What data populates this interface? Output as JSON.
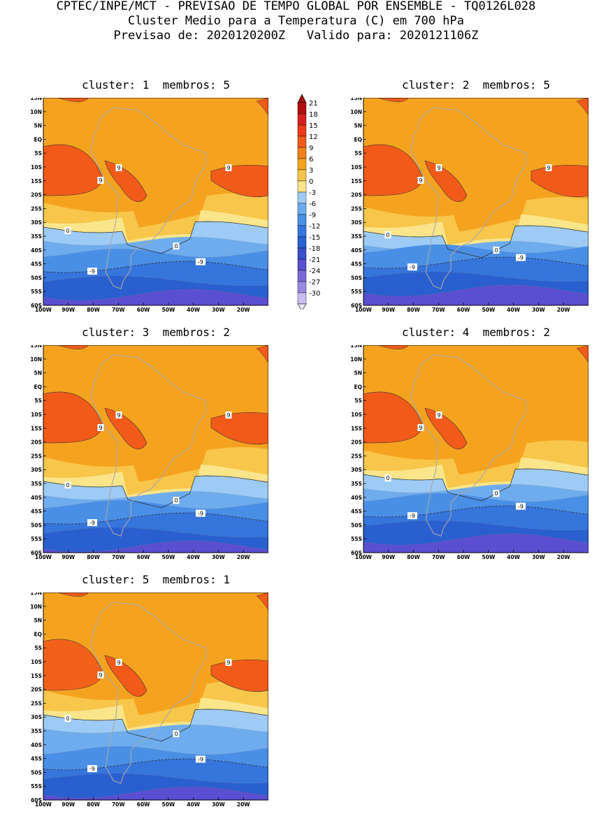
{
  "header": {
    "line1": "CPTEC/INPE/MCT - PREVISAO DE TEMPO GLOBAL POR ENSEMBLE - TQ0126L028",
    "line2": "Cluster Medio para a Temperatura (C) em 700 hPa",
    "line3": "Previsao de: 2020120200Z   Valido para: 2020121106Z"
  },
  "panels": [
    {
      "title": "cluster: 1  membros: 5"
    },
    {
      "title": "cluster: 2  membros: 5"
    },
    {
      "title": "cluster: 3  membros: 2"
    },
    {
      "title": "cluster: 4  membros: 2"
    },
    {
      "title": "cluster: 5  membros: 1"
    }
  ],
  "axes": {
    "lat_labels": [
      "15N",
      "10N",
      "5N",
      "EQ",
      "5S",
      "10S",
      "15S",
      "20S",
      "25S",
      "30S",
      "35S",
      "40S",
      "45S",
      "50S",
      "55S",
      "60S"
    ],
    "lon_labels": [
      "100W",
      "90W",
      "80W",
      "70W",
      "60W",
      "50W",
      "40W",
      "30W",
      "20W"
    ]
  },
  "colorbar": {
    "levels": [
      "21",
      "18",
      "15",
      "12",
      "9",
      "6",
      "3",
      "0",
      "-3",
      "-6",
      "-9",
      "-12",
      "-15",
      "-18",
      "-21",
      "-24",
      "-27",
      "-30"
    ],
    "colors": [
      "#b40e0e",
      "#d62020",
      "#ee3a1a",
      "#f25a1a",
      "#f57f1a",
      "#f5a31f",
      "#f8c64a",
      "#fbe58a",
      "#9ecbf5",
      "#6eacee",
      "#4a8fe6",
      "#3575dc",
      "#2a5fcf",
      "#3a4fc9",
      "#5a4fd0",
      "#7a6ad8",
      "#9a8ae2",
      "#c8bcf0"
    ],
    "arrow_top_color": "#a00c0c",
    "arrow_bottom_color": "#e8e4fa"
  },
  "contour_labels": {
    "warm": "9",
    "zero": "0",
    "cold": "-9"
  },
  "colors": {
    "orange": "#f5a31f",
    "dark_orange": "#f57f1a",
    "red_orange": "#f25a1a",
    "light_orange": "#f8c64a",
    "yellow": "#fbe58a",
    "light_blue": "#9ecbf5",
    "mid_blue": "#6eacee",
    "blue": "#4a8fe6",
    "deep_blue": "#3575dc",
    "purple_blue": "#5a4fd0",
    "coast": "#a8a8a8"
  }
}
